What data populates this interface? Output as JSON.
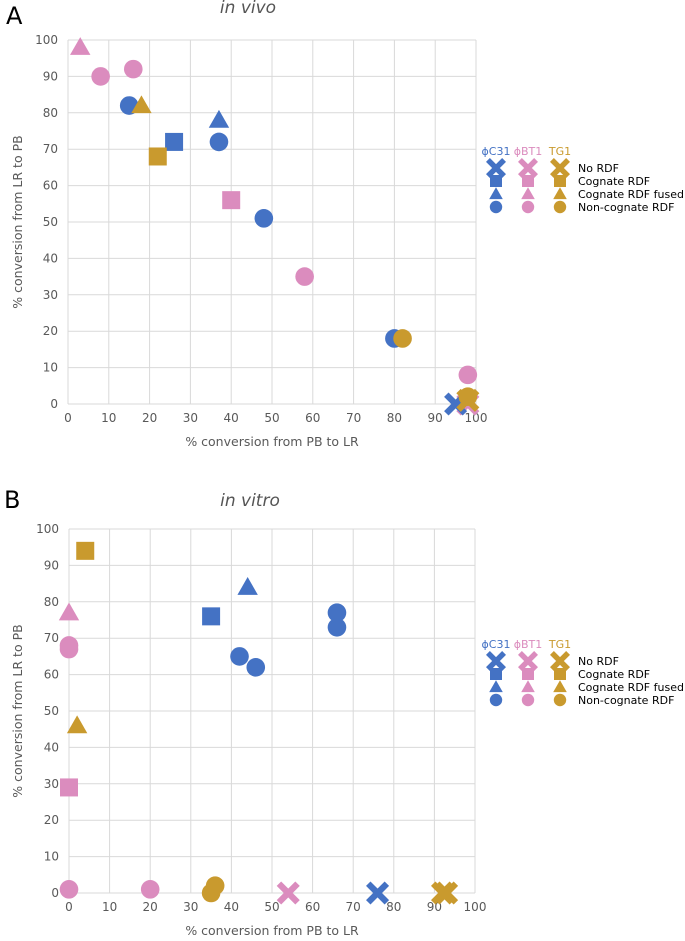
{
  "figure": {
    "colors": {
      "phiC31": "#4472C4",
      "phiBT1": "#DB8CBE",
      "TG1": "#C99A2E",
      "grid": "#D9D9D9",
      "text": "#595959"
    }
  },
  "chart_data": [
    {
      "panel": "A",
      "type": "scatter",
      "title": "in vivo",
      "xlabel": "% conversion from PB to LR",
      "ylabel": "% conversion from LR to PB",
      "xlim": [
        0,
        100
      ],
      "ylim": [
        0,
        100
      ],
      "xticks": [
        0,
        10,
        20,
        30,
        40,
        50,
        60,
        70,
        80,
        90,
        100
      ],
      "yticks": [
        0,
        10,
        20,
        30,
        40,
        50,
        60,
        70,
        80,
        90,
        100
      ],
      "grid": true,
      "legend_position": "right",
      "legend": {
        "integrases": [
          "ϕC31",
          "ϕBT1",
          "TG1"
        ],
        "conditions": [
          "No RDF",
          "Cognate RDF",
          "Cognate RDF fused",
          "Non-cognate RDF"
        ]
      },
      "points": [
        {
          "integrase": "phiBT1",
          "condition": "Non-cognate RDF",
          "x": 8,
          "y": 90
        },
        {
          "integrase": "phiBT1",
          "condition": "Non-cognate RDF",
          "x": 16,
          "y": 92
        },
        {
          "integrase": "phiBT1",
          "condition": "Cognate RDF fused",
          "x": 3,
          "y": 98
        },
        {
          "integrase": "phiBT1",
          "condition": "Cognate RDF",
          "x": 40,
          "y": 56
        },
        {
          "integrase": "phiBT1",
          "condition": "Non-cognate RDF",
          "x": 58,
          "y": 35
        },
        {
          "integrase": "phiBT1",
          "condition": "Non-cognate RDF",
          "x": 98,
          "y": 8
        },
        {
          "integrase": "phiBT1",
          "condition": "No RDF",
          "x": 98,
          "y": 0
        },
        {
          "integrase": "phiC31",
          "condition": "Non-cognate RDF",
          "x": 15,
          "y": 82
        },
        {
          "integrase": "phiC31",
          "condition": "Cognate RDF",
          "x": 26,
          "y": 72
        },
        {
          "integrase": "phiC31",
          "condition": "Cognate RDF fused",
          "x": 37,
          "y": 78
        },
        {
          "integrase": "phiC31",
          "condition": "Non-cognate RDF",
          "x": 37,
          "y": 72
        },
        {
          "integrase": "phiC31",
          "condition": "Non-cognate RDF",
          "x": 48,
          "y": 51
        },
        {
          "integrase": "phiC31",
          "condition": "Non-cognate RDF",
          "x": 80,
          "y": 18
        },
        {
          "integrase": "phiC31",
          "condition": "No RDF",
          "x": 95,
          "y": 0
        },
        {
          "integrase": "TG1",
          "condition": "Cognate RDF fused",
          "x": 18,
          "y": 82
        },
        {
          "integrase": "TG1",
          "condition": "Cognate RDF",
          "x": 22,
          "y": 68
        },
        {
          "integrase": "TG1",
          "condition": "Non-cognate RDF",
          "x": 82,
          "y": 18
        },
        {
          "integrase": "TG1",
          "condition": "Non-cognate RDF",
          "x": 98,
          "y": 2
        },
        {
          "integrase": "TG1",
          "condition": "No RDF",
          "x": 98,
          "y": 1
        }
      ]
    },
    {
      "panel": "B",
      "type": "scatter",
      "title": "in vitro",
      "xlabel": "% conversion from PB to LR",
      "ylabel": "% conversion from LR to PB",
      "xlim": [
        0,
        100
      ],
      "ylim": [
        0,
        100
      ],
      "xticks": [
        0,
        10,
        20,
        30,
        40,
        50,
        60,
        70,
        80,
        90,
        100
      ],
      "yticks": [
        0,
        10,
        20,
        30,
        40,
        50,
        60,
        70,
        80,
        90,
        100
      ],
      "grid": true,
      "legend_position": "right",
      "legend": {
        "integrases": [
          "ϕC31",
          "ϕBT1",
          "TG1"
        ],
        "conditions": [
          "No RDF",
          "Cognate RDF",
          "Cognate RDF fused",
          "Non-cognate RDF"
        ]
      },
      "points": [
        {
          "integrase": "phiBT1",
          "condition": "Cognate RDF fused",
          "x": 0,
          "y": 77
        },
        {
          "integrase": "phiBT1",
          "condition": "Non-cognate RDF",
          "x": 0,
          "y": 68
        },
        {
          "integrase": "phiBT1",
          "condition": "Non-cognate RDF",
          "x": 0,
          "y": 67
        },
        {
          "integrase": "phiBT1",
          "condition": "Cognate RDF",
          "x": 0,
          "y": 29
        },
        {
          "integrase": "phiBT1",
          "condition": "Non-cognate RDF",
          "x": 0,
          "y": 1
        },
        {
          "integrase": "phiBT1",
          "condition": "Non-cognate RDF",
          "x": 20,
          "y": 1
        },
        {
          "integrase": "phiBT1",
          "condition": "No RDF",
          "x": 54,
          "y": 0
        },
        {
          "integrase": "TG1",
          "condition": "Cognate RDF",
          "x": 4,
          "y": 94
        },
        {
          "integrase": "TG1",
          "condition": "Cognate RDF fused",
          "x": 2,
          "y": 46
        },
        {
          "integrase": "TG1",
          "condition": "Non-cognate RDF",
          "x": 35,
          "y": 0
        },
        {
          "integrase": "TG1",
          "condition": "Non-cognate RDF",
          "x": 36,
          "y": 2
        },
        {
          "integrase": "TG1",
          "condition": "No RDF",
          "x": 92,
          "y": 0
        },
        {
          "integrase": "TG1",
          "condition": "No RDF",
          "x": 93,
          "y": 0
        },
        {
          "integrase": "phiC31",
          "condition": "Cognate RDF",
          "x": 35,
          "y": 76
        },
        {
          "integrase": "phiC31",
          "condition": "Cognate RDF fused",
          "x": 44,
          "y": 84
        },
        {
          "integrase": "phiC31",
          "condition": "Non-cognate RDF",
          "x": 42,
          "y": 65
        },
        {
          "integrase": "phiC31",
          "condition": "Non-cognate RDF",
          "x": 46,
          "y": 62
        },
        {
          "integrase": "phiC31",
          "condition": "Non-cognate RDF",
          "x": 66,
          "y": 77
        },
        {
          "integrase": "phiC31",
          "condition": "Non-cognate RDF",
          "x": 66,
          "y": 73
        },
        {
          "integrase": "phiC31",
          "condition": "No RDF",
          "x": 76,
          "y": 0
        }
      ]
    }
  ]
}
